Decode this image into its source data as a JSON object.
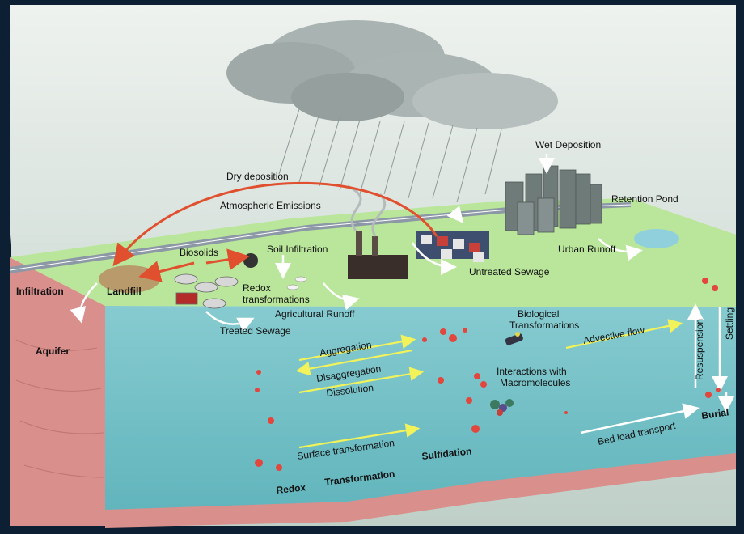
{
  "labels": {
    "wet_deposition": "Wet Deposition",
    "dry_deposition": "Dry deposition",
    "atmospheric_emissions": "Atmospheric Emissions",
    "retention_pond": "Retention Pond",
    "biosolids": "Biosolids",
    "soil_infiltration": "Soil Infiltration",
    "urban_runoff": "Urban Runoff",
    "untreated_sewage": "Untreated Sewage",
    "infiltration": "Infiltration",
    "landfill": "Landfill",
    "redox_transformations": [
      "Redox",
      "transformations"
    ],
    "agricultural_runoff": "Agricultural Runoff",
    "treated_sewage": "Treated Sewage",
    "aquifer": "Aquifer",
    "biological_transformations": [
      "Biological",
      "Transformations"
    ],
    "aggregation": "Aggregation",
    "disaggregation": "Disaggregation",
    "advective_flow": "Advective flow",
    "resuspension": "Resuspension",
    "settling": "Settling",
    "dissolution": "Dissolution",
    "interactions": [
      "Interactions with",
      "Macromolecules"
    ],
    "surface_transformation": "Surface transformation",
    "sulfidation": "Sulfidation",
    "bed_load_transport": "Bed load transport",
    "burial": "Burial",
    "redox": "Redox",
    "transformation": "Transformation"
  },
  "colors": {
    "background": "#0d1f33",
    "sky": "#cfd8d4",
    "land": "#b9e69a",
    "water": "#7fc4c9",
    "soil": "#d98f8c",
    "particle": "#e2463c",
    "flow_arrow": "#f2f25a",
    "dry_deposition_arrow": "#e0502e"
  }
}
